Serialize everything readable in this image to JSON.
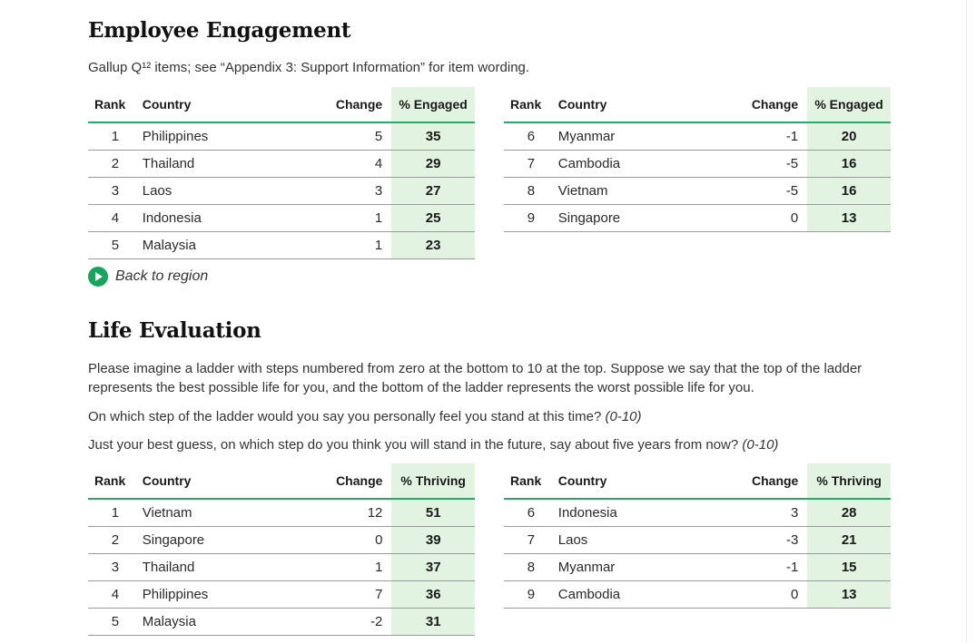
{
  "employee_engagement": {
    "title": "Employee Engagement",
    "description": "Gallup Q¹² items; see “Appendix 3: Support Information” for item wording.",
    "columns": [
      "Rank",
      "Country",
      "Change",
      "% Engaged"
    ],
    "left_rows": [
      {
        "rank": "1",
        "country": "Philippines",
        "change": "5",
        "value": "35"
      },
      {
        "rank": "2",
        "country": "Thailand",
        "change": "4",
        "value": "29"
      },
      {
        "rank": "3",
        "country": "Laos",
        "change": "3",
        "value": "27"
      },
      {
        "rank": "4",
        "country": "Indonesia",
        "change": "1",
        "value": "25"
      },
      {
        "rank": "5",
        "country": "Malaysia",
        "change": "1",
        "value": "23"
      }
    ],
    "right_rows": [
      {
        "rank": "6",
        "country": "Myanmar",
        "change": "-1",
        "value": "20"
      },
      {
        "rank": "7",
        "country": "Cambodia",
        "change": "-5",
        "value": "16"
      },
      {
        "rank": "8",
        "country": "Vietnam",
        "change": "-5",
        "value": "16"
      },
      {
        "rank": "9",
        "country": "Singapore",
        "change": "0",
        "value": "13"
      }
    ],
    "back_link": "Back to region"
  },
  "life_evaluation": {
    "title": "Life Evaluation",
    "paragraph1": "Please imagine a ladder with steps numbered from zero at the bottom to 10 at the top. Suppose we say that the top of the ladder represents the best possible life for you, and the bottom of the ladder represents the worst possible life for you.",
    "paragraph2": "On which step of the ladder would you say you personally feel you stand at this time?",
    "paragraph2_scale": "(0-10)",
    "paragraph3": "Just your best guess, on which step do you think you will stand in the future, say about five years from now?",
    "paragraph3_scale": "(0-10)",
    "columns": [
      "Rank",
      "Country",
      "Change",
      "% Thriving"
    ],
    "left_rows": [
      {
        "rank": "1",
        "country": "Vietnam",
        "change": "12",
        "value": "51"
      },
      {
        "rank": "2",
        "country": "Singapore",
        "change": "0",
        "value": "39"
      },
      {
        "rank": "3",
        "country": "Thailand",
        "change": "1",
        "value": "37"
      },
      {
        "rank": "4",
        "country": "Philippines",
        "change": "7",
        "value": "36"
      },
      {
        "rank": "5",
        "country": "Malaysia",
        "change": "-2",
        "value": "31"
      }
    ],
    "right_rows": [
      {
        "rank": "6",
        "country": "Indonesia",
        "change": "3",
        "value": "28"
      },
      {
        "rank": "7",
        "country": "Laos",
        "change": "-3",
        "value": "21"
      },
      {
        "rank": "8",
        "country": "Myanmar",
        "change": "-1",
        "value": "15"
      },
      {
        "rank": "9",
        "country": "Cambodia",
        "change": "0",
        "value": "13"
      }
    ]
  },
  "colors": {
    "accent_green": "#1aa35c",
    "header_rule": "#2aa86a",
    "value_column_bg": "#e2f3e2"
  },
  "icons": {
    "back_link_icon": "play-circle-icon"
  }
}
